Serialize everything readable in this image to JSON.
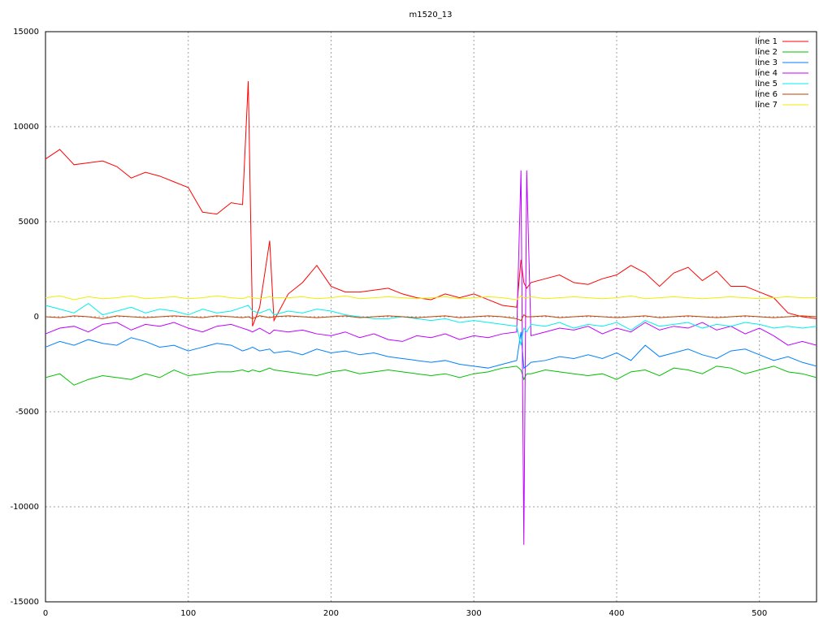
{
  "chart_data": {
    "type": "line",
    "title": "m1520_13",
    "x": [
      0,
      10,
      20,
      30,
      40,
      50,
      60,
      70,
      80,
      90,
      100,
      110,
      120,
      130,
      138,
      142,
      145,
      150,
      157,
      160,
      170,
      180,
      190,
      200,
      210,
      220,
      230,
      240,
      250,
      260,
      270,
      280,
      290,
      300,
      310,
      320,
      330,
      333,
      335,
      337,
      340,
      350,
      360,
      370,
      380,
      390,
      400,
      410,
      420,
      430,
      440,
      450,
      460,
      470,
      480,
      490,
      500,
      510,
      520,
      530,
      540
    ],
    "series": [
      {
        "name": "line 1",
        "color": "#ff0000",
        "values": [
          8300,
          8800,
          8000,
          8100,
          8200,
          7900,
          7300,
          7600,
          7400,
          7100,
          6800,
          5500,
          5400,
          6000,
          5900,
          12400,
          -500,
          500,
          4000,
          -200,
          1200,
          1800,
          2700,
          1600,
          1300,
          1300,
          1400,
          1500,
          1200,
          1000,
          900,
          1200,
          1000,
          1200,
          900,
          600,
          500,
          3000,
          1800,
          1500,
          1800,
          2000,
          2200,
          1800,
          1700,
          2000,
          2200,
          2700,
          2300,
          1600,
          2300,
          2600,
          1900,
          2400,
          1600,
          1600,
          1300,
          1000,
          200,
          0,
          -100
        ]
      },
      {
        "name": "line 2",
        "color": "#00c000",
        "values": [
          -3200,
          -3000,
          -3600,
          -3300,
          -3100,
          -3200,
          -3300,
          -3000,
          -3200,
          -2800,
          -3100,
          -3000,
          -2900,
          -2900,
          -2800,
          -2900,
          -2800,
          -2900,
          -2700,
          -2800,
          -2900,
          -3000,
          -3100,
          -2900,
          -2800,
          -3000,
          -2900,
          -2800,
          -2900,
          -3000,
          -3100,
          -3000,
          -3200,
          -3000,
          -2900,
          -2700,
          -2600,
          -2800,
          -3300,
          -3000,
          -3000,
          -2800,
          -2900,
          -3000,
          -3100,
          -3000,
          -3300,
          -2900,
          -2800,
          -3100,
          -2700,
          -2800,
          -3000,
          -2600,
          -2700,
          -3000,
          -2800,
          -2600,
          -2900,
          -3000,
          -3200
        ]
      },
      {
        "name": "line 3",
        "color": "#0080ff",
        "values": [
          -1600,
          -1300,
          -1500,
          -1200,
          -1400,
          -1500,
          -1100,
          -1300,
          -1600,
          -1500,
          -1800,
          -1600,
          -1400,
          -1500,
          -1800,
          -1700,
          -1600,
          -1800,
          -1700,
          -1900,
          -1800,
          -2000,
          -1700,
          -1900,
          -1800,
          -2000,
          -1900,
          -2100,
          -2200,
          -2300,
          -2400,
          -2300,
          -2500,
          -2600,
          -2700,
          -2500,
          -2300,
          -800,
          -2700,
          -2600,
          -2400,
          -2300,
          -2100,
          -2200,
          -2000,
          -2200,
          -1900,
          -2300,
          -1500,
          -2100,
          -1900,
          -1700,
          -2000,
          -2200,
          -1800,
          -1700,
          -2000,
          -2300,
          -2100,
          -2400,
          -2600
        ]
      },
      {
        "name": "line 4",
        "color": "#c000ff",
        "values": [
          -900,
          -600,
          -500,
          -800,
          -400,
          -300,
          -700,
          -400,
          -500,
          -300,
          -600,
          -800,
          -500,
          -400,
          -600,
          -700,
          -800,
          -600,
          -900,
          -700,
          -800,
          -700,
          -900,
          -1000,
          -800,
          -1100,
          -900,
          -1200,
          -1300,
          -1000,
          -1100,
          -900,
          -1200,
          -1000,
          -1100,
          -900,
          -800,
          7700,
          -12000,
          7700,
          -1000,
          -800,
          -600,
          -700,
          -500,
          -900,
          -600,
          -800,
          -300,
          -700,
          -500,
          -600,
          -300,
          -700,
          -500,
          -900,
          -600,
          -1000,
          -1500,
          -1300,
          -1500
        ]
      },
      {
        "name": "line 5",
        "color": "#00eeee",
        "values": [
          600,
          400,
          200,
          700,
          100,
          300,
          500,
          200,
          400,
          300,
          100,
          400,
          200,
          300,
          500,
          600,
          300,
          200,
          400,
          100,
          300,
          200,
          400,
          300,
          100,
          0,
          -100,
          -100,
          0,
          -100,
          -200,
          -100,
          -300,
          -200,
          -300,
          -400,
          -500,
          -1500,
          -600,
          -800,
          -400,
          -500,
          -300,
          -600,
          -400,
          -500,
          -300,
          -700,
          -200,
          -500,
          -400,
          -300,
          -600,
          -400,
          -500,
          -300,
          -400,
          -600,
          -500,
          -600,
          -500
        ]
      },
      {
        "name": "line 6",
        "color": "#c04000",
        "values": [
          0,
          -50,
          50,
          0,
          -100,
          50,
          0,
          -50,
          0,
          50,
          0,
          -50,
          50,
          0,
          -50,
          0,
          -100,
          50,
          -50,
          0,
          50,
          0,
          -50,
          0,
          50,
          -50,
          0,
          50,
          0,
          -50,
          0,
          50,
          -50,
          0,
          50,
          0,
          -100,
          -200,
          100,
          0,
          0,
          50,
          -50,
          0,
          50,
          0,
          -50,
          0,
          50,
          -50,
          0,
          50,
          0,
          -50,
          0,
          50,
          0,
          -50,
          0,
          50,
          0
        ]
      },
      {
        "name": "line 7",
        "color": "#eeee00",
        "values": [
          1000,
          1100,
          900,
          1050,
          950,
          1000,
          1100,
          950,
          1000,
          1050,
          950,
          1000,
          1100,
          1000,
          950,
          1050,
          1000,
          950,
          1050,
          1000,
          1000,
          1050,
          950,
          1000,
          1100,
          950,
          1000,
          1050,
          1000,
          950,
          1000,
          1050,
          950,
          1000,
          1050,
          1000,
          900,
          1100,
          1000,
          1000,
          1050,
          950,
          1000,
          1050,
          1000,
          950,
          1000,
          1100,
          950,
          1000,
          1050,
          1000,
          950,
          1000,
          1050,
          1000,
          950,
          1000,
          1050,
          1000,
          1000
        ]
      }
    ],
    "xlim": [
      0,
      540
    ],
    "xticks": [
      0,
      100,
      200,
      300,
      400,
      500
    ],
    "ylim": [
      -15000,
      15000
    ],
    "yticks": [
      -15000,
      -10000,
      -5000,
      0,
      5000,
      10000,
      15000
    ],
    "grid": true,
    "legend": "top-right"
  }
}
